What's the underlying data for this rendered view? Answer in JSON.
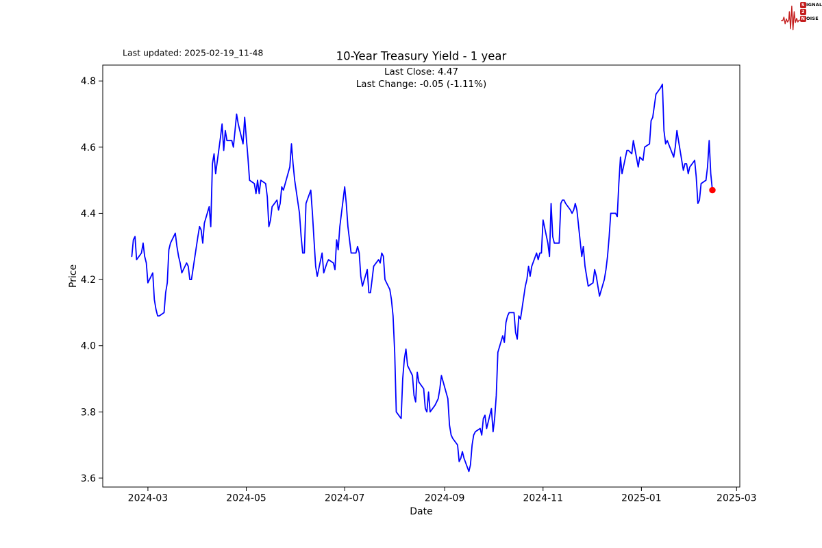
{
  "header": {
    "last_updated": "Last updated: 2025-02-19_11-48"
  },
  "logo": {
    "color": "#c41e1e",
    "rows": [
      {
        "badge": "S",
        "rest": "IGNAL"
      },
      {
        "badge": "2",
        "rest": ""
      },
      {
        "badge": "N",
        "rest": "OISE"
      }
    ]
  },
  "chart_data": {
    "type": "line",
    "title": "10-Year Treasury Yield - 1 year",
    "subtitle_line1": "Last Close: 4.47",
    "subtitle_line2": "Last Change: -0.05 (-1.11%)",
    "xlabel": "Date",
    "ylabel": "Price",
    "line_color": "#0000ff",
    "marker_color": "#ff0000",
    "grid": false,
    "legend": "none",
    "xlim": [
      "2024-02-02",
      "2025-03-03"
    ],
    "ylim": [
      3.573,
      4.848
    ],
    "x_ticks": [
      {
        "date": "2024-03-01",
        "label": "2024-03"
      },
      {
        "date": "2024-05-01",
        "label": "2024-05"
      },
      {
        "date": "2024-07-01",
        "label": "2024-07"
      },
      {
        "date": "2024-09-01",
        "label": "2024-09"
      },
      {
        "date": "2024-11-01",
        "label": "2024-11"
      },
      {
        "date": "2025-01-01",
        "label": "2025-01"
      },
      {
        "date": "2025-03-01",
        "label": "2025-03"
      }
    ],
    "y_ticks": [
      {
        "value": 3.6,
        "label": "3.6"
      },
      {
        "value": 3.8,
        "label": "3.8"
      },
      {
        "value": 4.0,
        "label": "4.0"
      },
      {
        "value": 4.2,
        "label": "4.2"
      },
      {
        "value": 4.4,
        "label": "4.4"
      },
      {
        "value": 4.6,
        "label": "4.6"
      },
      {
        "value": 4.8,
        "label": "4.8"
      }
    ],
    "series": [
      {
        "name": "10-Year Treasury Yield",
        "last_point_marker": true,
        "points": [
          [
            "2024-02-20",
            4.27
          ],
          [
            "2024-02-21",
            4.32
          ],
          [
            "2024-02-22",
            4.33
          ],
          [
            "2024-02-23",
            4.26
          ],
          [
            "2024-02-26",
            4.28
          ],
          [
            "2024-02-27",
            4.31
          ],
          [
            "2024-02-28",
            4.27
          ],
          [
            "2024-02-29",
            4.25
          ],
          [
            "2024-03-01",
            4.19
          ],
          [
            "2024-03-04",
            4.22
          ],
          [
            "2024-03-05",
            4.14
          ],
          [
            "2024-03-06",
            4.11
          ],
          [
            "2024-03-07",
            4.09
          ],
          [
            "2024-03-08",
            4.09
          ],
          [
            "2024-03-11",
            4.1
          ],
          [
            "2024-03-12",
            4.16
          ],
          [
            "2024-03-13",
            4.19
          ],
          [
            "2024-03-14",
            4.29
          ],
          [
            "2024-03-15",
            4.31
          ],
          [
            "2024-03-18",
            4.34
          ],
          [
            "2024-03-19",
            4.3
          ],
          [
            "2024-03-20",
            4.27
          ],
          [
            "2024-03-21",
            4.25
          ],
          [
            "2024-03-22",
            4.22
          ],
          [
            "2024-03-25",
            4.25
          ],
          [
            "2024-03-26",
            4.24
          ],
          [
            "2024-03-27",
            4.2
          ],
          [
            "2024-03-28",
            4.2
          ],
          [
            "2024-04-01",
            4.33
          ],
          [
            "2024-04-02",
            4.36
          ],
          [
            "2024-04-03",
            4.35
          ],
          [
            "2024-04-04",
            4.31
          ],
          [
            "2024-04-05",
            4.37
          ],
          [
            "2024-04-08",
            4.42
          ],
          [
            "2024-04-09",
            4.36
          ],
          [
            "2024-04-10",
            4.55
          ],
          [
            "2024-04-11",
            4.58
          ],
          [
            "2024-04-12",
            4.52
          ],
          [
            "2024-04-15",
            4.63
          ],
          [
            "2024-04-16",
            4.67
          ],
          [
            "2024-04-17",
            4.59
          ],
          [
            "2024-04-18",
            4.65
          ],
          [
            "2024-04-19",
            4.62
          ],
          [
            "2024-04-22",
            4.62
          ],
          [
            "2024-04-23",
            4.6
          ],
          [
            "2024-04-24",
            4.65
          ],
          [
            "2024-04-25",
            4.7
          ],
          [
            "2024-04-26",
            4.67
          ],
          [
            "2024-04-29",
            4.61
          ],
          [
            "2024-04-30",
            4.69
          ],
          [
            "2024-05-01",
            4.63
          ],
          [
            "2024-05-02",
            4.57
          ],
          [
            "2024-05-03",
            4.5
          ],
          [
            "2024-05-06",
            4.49
          ],
          [
            "2024-05-07",
            4.46
          ],
          [
            "2024-05-08",
            4.5
          ],
          [
            "2024-05-09",
            4.46
          ],
          [
            "2024-05-10",
            4.5
          ],
          [
            "2024-05-13",
            4.49
          ],
          [
            "2024-05-14",
            4.45
          ],
          [
            "2024-05-15",
            4.36
          ],
          [
            "2024-05-16",
            4.38
          ],
          [
            "2024-05-17",
            4.42
          ],
          [
            "2024-05-20",
            4.44
          ],
          [
            "2024-05-21",
            4.41
          ],
          [
            "2024-05-22",
            4.43
          ],
          [
            "2024-05-23",
            4.48
          ],
          [
            "2024-05-24",
            4.47
          ],
          [
            "2024-05-28",
            4.54
          ],
          [
            "2024-05-29",
            4.61
          ],
          [
            "2024-05-30",
            4.55
          ],
          [
            "2024-05-31",
            4.5
          ],
          [
            "2024-06-03",
            4.4
          ],
          [
            "2024-06-04",
            4.33
          ],
          [
            "2024-06-05",
            4.28
          ],
          [
            "2024-06-06",
            4.28
          ],
          [
            "2024-06-07",
            4.43
          ],
          [
            "2024-06-10",
            4.47
          ],
          [
            "2024-06-11",
            4.4
          ],
          [
            "2024-06-12",
            4.32
          ],
          [
            "2024-06-13",
            4.24
          ],
          [
            "2024-06-14",
            4.21
          ],
          [
            "2024-06-17",
            4.28
          ],
          [
            "2024-06-18",
            4.22
          ],
          [
            "2024-06-20",
            4.25
          ],
          [
            "2024-06-21",
            4.26
          ],
          [
            "2024-06-24",
            4.25
          ],
          [
            "2024-06-25",
            4.23
          ],
          [
            "2024-06-26",
            4.32
          ],
          [
            "2024-06-27",
            4.29
          ],
          [
            "2024-06-28",
            4.36
          ],
          [
            "2024-07-01",
            4.48
          ],
          [
            "2024-07-02",
            4.43
          ],
          [
            "2024-07-03",
            4.36
          ],
          [
            "2024-07-05",
            4.28
          ],
          [
            "2024-07-08",
            4.28
          ],
          [
            "2024-07-09",
            4.3
          ],
          [
            "2024-07-10",
            4.28
          ],
          [
            "2024-07-11",
            4.21
          ],
          [
            "2024-07-12",
            4.18
          ],
          [
            "2024-07-15",
            4.23
          ],
          [
            "2024-07-16",
            4.16
          ],
          [
            "2024-07-17",
            4.16
          ],
          [
            "2024-07-18",
            4.2
          ],
          [
            "2024-07-19",
            4.24
          ],
          [
            "2024-07-22",
            4.26
          ],
          [
            "2024-07-23",
            4.25
          ],
          [
            "2024-07-24",
            4.28
          ],
          [
            "2024-07-25",
            4.27
          ],
          [
            "2024-07-26",
            4.2
          ],
          [
            "2024-07-29",
            4.17
          ],
          [
            "2024-07-30",
            4.14
          ],
          [
            "2024-07-31",
            4.09
          ],
          [
            "2024-08-01",
            3.98
          ],
          [
            "2024-08-02",
            3.8
          ],
          [
            "2024-08-05",
            3.78
          ],
          [
            "2024-08-06",
            3.9
          ],
          [
            "2024-08-07",
            3.96
          ],
          [
            "2024-08-08",
            3.99
          ],
          [
            "2024-08-09",
            3.94
          ],
          [
            "2024-08-12",
            3.91
          ],
          [
            "2024-08-13",
            3.85
          ],
          [
            "2024-08-14",
            3.83
          ],
          [
            "2024-08-15",
            3.92
          ],
          [
            "2024-08-16",
            3.89
          ],
          [
            "2024-08-19",
            3.87
          ],
          [
            "2024-08-20",
            3.81
          ],
          [
            "2024-08-21",
            3.8
          ],
          [
            "2024-08-22",
            3.86
          ],
          [
            "2024-08-23",
            3.8
          ],
          [
            "2024-08-26",
            3.82
          ],
          [
            "2024-08-27",
            3.83
          ],
          [
            "2024-08-28",
            3.84
          ],
          [
            "2024-08-29",
            3.87
          ],
          [
            "2024-08-30",
            3.91
          ],
          [
            "2024-09-03",
            3.84
          ],
          [
            "2024-09-04",
            3.76
          ],
          [
            "2024-09-05",
            3.73
          ],
          [
            "2024-09-06",
            3.72
          ],
          [
            "2024-09-09",
            3.7
          ],
          [
            "2024-09-10",
            3.65
          ],
          [
            "2024-09-11",
            3.66
          ],
          [
            "2024-09-12",
            3.68
          ],
          [
            "2024-09-13",
            3.66
          ],
          [
            "2024-09-16",
            3.62
          ],
          [
            "2024-09-17",
            3.64
          ],
          [
            "2024-09-18",
            3.7
          ],
          [
            "2024-09-19",
            3.73
          ],
          [
            "2024-09-20",
            3.74
          ],
          [
            "2024-09-23",
            3.75
          ],
          [
            "2024-09-24",
            3.73
          ],
          [
            "2024-09-25",
            3.78
          ],
          [
            "2024-09-26",
            3.79
          ],
          [
            "2024-09-27",
            3.75
          ],
          [
            "2024-09-30",
            3.81
          ],
          [
            "2024-10-01",
            3.74
          ],
          [
            "2024-10-02",
            3.78
          ],
          [
            "2024-10-03",
            3.85
          ],
          [
            "2024-10-04",
            3.98
          ],
          [
            "2024-10-07",
            4.03
          ],
          [
            "2024-10-08",
            4.01
          ],
          [
            "2024-10-09",
            4.07
          ],
          [
            "2024-10-10",
            4.09
          ],
          [
            "2024-10-11",
            4.1
          ],
          [
            "2024-10-14",
            4.1
          ],
          [
            "2024-10-15",
            4.04
          ],
          [
            "2024-10-16",
            4.02
          ],
          [
            "2024-10-17",
            4.09
          ],
          [
            "2024-10-18",
            4.08
          ],
          [
            "2024-10-21",
            4.18
          ],
          [
            "2024-10-22",
            4.2
          ],
          [
            "2024-10-23",
            4.24
          ],
          [
            "2024-10-24",
            4.21
          ],
          [
            "2024-10-25",
            4.24
          ],
          [
            "2024-10-28",
            4.28
          ],
          [
            "2024-10-29",
            4.26
          ],
          [
            "2024-10-30",
            4.28
          ],
          [
            "2024-10-31",
            4.28
          ],
          [
            "2024-11-01",
            4.38
          ],
          [
            "2024-11-04",
            4.31
          ],
          [
            "2024-11-05",
            4.27
          ],
          [
            "2024-11-06",
            4.43
          ],
          [
            "2024-11-07",
            4.33
          ],
          [
            "2024-11-08",
            4.31
          ],
          [
            "2024-11-11",
            4.31
          ],
          [
            "2024-11-12",
            4.43
          ],
          [
            "2024-11-13",
            4.44
          ],
          [
            "2024-11-14",
            4.44
          ],
          [
            "2024-11-15",
            4.43
          ],
          [
            "2024-11-18",
            4.41
          ],
          [
            "2024-11-19",
            4.4
          ],
          [
            "2024-11-20",
            4.41
          ],
          [
            "2024-11-21",
            4.43
          ],
          [
            "2024-11-22",
            4.41
          ],
          [
            "2024-11-25",
            4.27
          ],
          [
            "2024-11-26",
            4.3
          ],
          [
            "2024-11-27",
            4.24
          ],
          [
            "2024-11-29",
            4.18
          ],
          [
            "2024-12-02",
            4.19
          ],
          [
            "2024-12-03",
            4.23
          ],
          [
            "2024-12-04",
            4.21
          ],
          [
            "2024-12-05",
            4.18
          ],
          [
            "2024-12-06",
            4.15
          ],
          [
            "2024-12-09",
            4.2
          ],
          [
            "2024-12-10",
            4.23
          ],
          [
            "2024-12-11",
            4.27
          ],
          [
            "2024-12-12",
            4.33
          ],
          [
            "2024-12-13",
            4.4
          ],
          [
            "2024-12-16",
            4.4
          ],
          [
            "2024-12-17",
            4.39
          ],
          [
            "2024-12-18",
            4.49
          ],
          [
            "2024-12-19",
            4.57
          ],
          [
            "2024-12-20",
            4.52
          ],
          [
            "2024-12-23",
            4.59
          ],
          [
            "2024-12-24",
            4.59
          ],
          [
            "2024-12-26",
            4.58
          ],
          [
            "2024-12-27",
            4.62
          ],
          [
            "2024-12-30",
            4.54
          ],
          [
            "2024-12-31",
            4.57
          ],
          [
            "2025-01-02",
            4.56
          ],
          [
            "2025-01-03",
            4.6
          ],
          [
            "2025-01-06",
            4.61
          ],
          [
            "2025-01-07",
            4.68
          ],
          [
            "2025-01-08",
            4.69
          ],
          [
            "2025-01-10",
            4.76
          ],
          [
            "2025-01-13",
            4.78
          ],
          [
            "2025-01-14",
            4.79
          ],
          [
            "2025-01-15",
            4.65
          ],
          [
            "2025-01-16",
            4.61
          ],
          [
            "2025-01-17",
            4.62
          ],
          [
            "2025-01-21",
            4.57
          ],
          [
            "2025-01-22",
            4.6
          ],
          [
            "2025-01-23",
            4.65
          ],
          [
            "2025-01-24",
            4.62
          ],
          [
            "2025-01-27",
            4.53
          ],
          [
            "2025-01-28",
            4.55
          ],
          [
            "2025-01-29",
            4.55
          ],
          [
            "2025-01-30",
            4.52
          ],
          [
            "2025-01-31",
            4.54
          ],
          [
            "2025-02-03",
            4.56
          ],
          [
            "2025-02-04",
            4.51
          ],
          [
            "2025-02-05",
            4.43
          ],
          [
            "2025-02-06",
            4.44
          ],
          [
            "2025-02-07",
            4.49
          ],
          [
            "2025-02-10",
            4.5
          ],
          [
            "2025-02-11",
            4.54
          ],
          [
            "2025-02-12",
            4.62
          ],
          [
            "2025-02-13",
            4.52
          ],
          [
            "2025-02-14",
            4.47
          ]
        ]
      }
    ]
  }
}
